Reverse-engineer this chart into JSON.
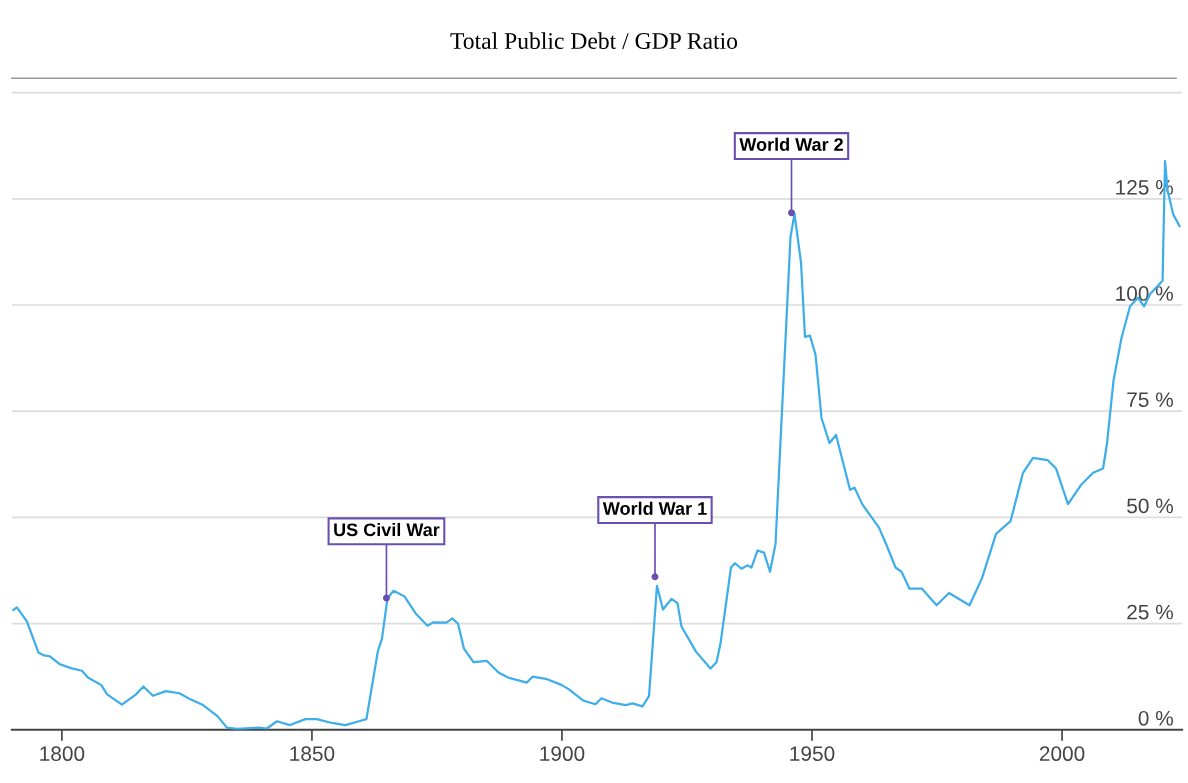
{
  "chart_data": {
    "type": "line",
    "title": "Total Public Debt / GDP Ratio",
    "x": [
      1790.3,
      1791,
      1793,
      1795.3,
      1796.4,
      1797.6,
      1799.5,
      1801.8,
      1804,
      1805.2,
      1807.9,
      1809,
      1812,
      1814.7,
      1816.3,
      1818.2,
      1820.8,
      1823.5,
      1825.8,
      1828.1,
      1831.1,
      1833,
      1835,
      1839.5,
      1841,
      1843,
      1845.6,
      1848.7,
      1851,
      1854,
      1856.7,
      1859.4,
      1860.9,
      1863.2,
      1864,
      1865.1,
      1866.3,
      1868.5,
      1870.8,
      1873.1,
      1874.3,
      1876.9,
      1878.1,
      1879.2,
      1880.4,
      1882.3,
      1885,
      1887.3,
      1889.2,
      1893,
      1894.1,
      1896.8,
      1900,
      1901.4,
      1904.2,
      1906.7,
      1907.9,
      1910,
      1912.8,
      1914.1,
      1916.1,
      1917.4,
      1919,
      1920.2,
      1921.9,
      1923.1,
      1923.9,
      1926.8,
      1929.7,
      1930.9,
      1931.7,
      1933.8,
      1934.6,
      1935.9,
      1937.1,
      1937.9,
      1939.1,
      1940.4,
      1941.6,
      1942.7,
      1945.7,
      1946.5,
      1947.8,
      1948.6,
      1949.6,
      1950.7,
      1951.9,
      1953.5,
      1954.8,
      1957.6,
      1958.5,
      1960.1,
      1963.4,
      1965,
      1966.7,
      1967.9,
      1969.5,
      1972,
      1974.9,
      1977.4,
      1979.4,
      1981.5,
      1984,
      1986.8,
      1989.7,
      1992.2,
      1994.2,
      1997.1,
      1998.8,
      2001.2,
      2003.7,
      2006.2,
      2008.2,
      2009,
      2010.3,
      2011.9,
      2013.6,
      2015.2,
      2016.4,
      2017.7,
      2020.1,
      2020.6,
      2021.1,
      2022.2,
      2022.6,
      2023.5
    ],
    "series": [
      {
        "color": "#3daee9",
        "values": [
          28.2,
          28.8,
          25.5,
          18.2,
          17.5,
          17.3,
          15.5,
          14.5,
          13.9,
          12.3,
          10.5,
          8.4,
          5.9,
          8.2,
          10.2,
          8,
          9.1,
          8.6,
          7.1,
          5.9,
          3.2,
          0.5,
          0.2,
          0.5,
          0.3,
          2,
          1.1,
          2.5,
          2.5,
          1.6,
          1.1,
          2,
          2.5,
          18.6,
          21.4,
          30.9,
          32.7,
          31.4,
          27.3,
          24.5,
          25.3,
          25.2,
          26.2,
          25,
          19.1,
          15.9,
          16.2,
          13.5,
          12.3,
          11.1,
          12.5,
          12,
          10.5,
          9.5,
          6.9,
          6,
          7.4,
          6.4,
          5.8,
          6.2,
          5.5,
          7.9,
          33.9,
          28.3,
          30.8,
          29.8,
          24.3,
          18.4,
          14.4,
          15.9,
          20.3,
          38.2,
          39.2,
          37.9,
          38.7,
          38.2,
          42.2,
          41.7,
          37.2,
          43.7,
          116,
          121.5,
          110,
          92.5,
          92.8,
          88.3,
          73.4,
          67.5,
          69.4,
          56.5,
          57,
          53,
          47.6,
          43.2,
          38.2,
          37.2,
          33.2,
          33.2,
          29.3,
          32.2,
          30.8,
          29.3,
          35.7,
          46.1,
          49.1,
          60.5,
          64,
          63.5,
          61.5,
          53.1,
          57.5,
          60.5,
          61.5,
          67.5,
          82.3,
          92.3,
          99.7,
          101.7,
          99.7,
          102.7,
          105.7,
          133.9,
          127,
          121.5,
          120.5,
          118.6
        ]
      }
    ],
    "xlim": [
      1790,
      2024
    ],
    "xticks": [
      1800,
      1850,
      1900,
      1950,
      2000
    ],
    "ylim": [
      0,
      153
    ],
    "yticks": [
      {
        "value": 0,
        "label": "0 %"
      },
      {
        "value": 25,
        "label": "25 %"
      },
      {
        "value": 50,
        "label": "50 %"
      },
      {
        "value": 75,
        "label": "75 %"
      },
      {
        "value": 100,
        "label": "100 %"
      },
      {
        "value": 125,
        "label": "125 %"
      },
      {
        "value": 150,
        "label": null
      }
    ],
    "grid": "y",
    "legend": false,
    "marker": "none",
    "line_style": "solid",
    "annotations": [
      {
        "text": "US Civil War",
        "x": 1864.9,
        "y": 31
      },
      {
        "text": "World War 1",
        "x": 1918.6,
        "y": 36
      },
      {
        "text": "World War 2",
        "x": 1945.9,
        "y": 121.7
      }
    ]
  }
}
